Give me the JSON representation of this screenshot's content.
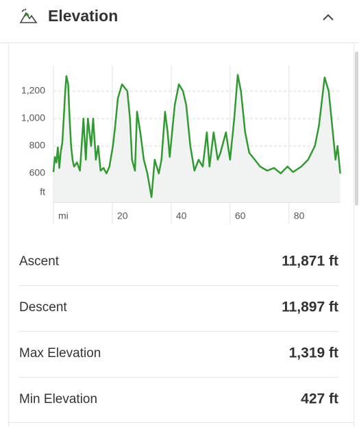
{
  "header": {
    "title": "Elevation"
  },
  "chart_data": {
    "type": "line",
    "y_label": "ft",
    "x": [
      0,
      0.5,
      1,
      1.5,
      2,
      2.5,
      3,
      3.5,
      4,
      4.4,
      5,
      5.5,
      6,
      6.5,
      7,
      8,
      9,
      10.2,
      11,
      11.7,
      12.8,
      13.5,
      14.4,
      15.2,
      16,
      17,
      18,
      19,
      20.2,
      21,
      21.9,
      23.3,
      25.1,
      26,
      26.7,
      27.7,
      28.4,
      29.5,
      30.7,
      31.9,
      33.3,
      34.4,
      35.8,
      36.7,
      37.9,
      38.8,
      39.5,
      41.2,
      42.6,
      44,
      45.1,
      46.5,
      47.9,
      49.3,
      50.7,
      52.1,
      53,
      54.4,
      55.8,
      56.7,
      58.6,
      60,
      61.4,
      62.6,
      63.7,
      65.1,
      66.5,
      68.4,
      70.2,
      72.6,
      74.9,
      77.2,
      79.5,
      81.4,
      84.2,
      86.5,
      88.8,
      90.2,
      92.1,
      93.5,
      94.9,
      95.8,
      96.5,
      97.4
    ],
    "series": [
      {
        "color": "#2f9a2f",
        "values": [
          610,
          720,
          680,
          790,
          640,
          760,
          820,
          1000,
          1200,
          1310,
          1250,
          1000,
          800,
          700,
          650,
          680,
          620,
          1000,
          700,
          1000,
          800,
          1000,
          700,
          800,
          620,
          640,
          600,
          650,
          800,
          950,
          1150,
          1250,
          1200,
          1000,
          700,
          620,
          1050,
          900,
          700,
          600,
          427,
          700,
          600,
          700,
          1050,
          900,
          720,
          1100,
          1250,
          1200,
          1100,
          800,
          620,
          700,
          650,
          900,
          650,
          900,
          700,
          750,
          900,
          700,
          1000,
          1319,
          1200,
          900,
          750,
          700,
          650,
          620,
          640,
          600,
          650,
          610,
          650,
          700,
          800,
          950,
          1300,
          1200,
          900,
          700,
          800,
          600
        ]
      }
    ],
    "xlim": [
      0,
      97.5
    ],
    "ylim": [
      390,
      1390
    ],
    "xticks": [
      {
        "value": 0,
        "label": "mi"
      },
      20,
      40,
      60,
      80
    ],
    "yticks": [
      600,
      800,
      {
        "value": 1000,
        "label": "1,000"
      },
      {
        "value": 1200,
        "label": "1,200"
      }
    ],
    "grid": true
  },
  "stats": [
    {
      "label": "Ascent",
      "value": "11,871 ft"
    },
    {
      "label": "Descent",
      "value": "11,897 ft"
    },
    {
      "label": "Max Elevation",
      "value": "1,319 ft"
    },
    {
      "label": "Min Elevation",
      "value": "427 ft"
    }
  ]
}
